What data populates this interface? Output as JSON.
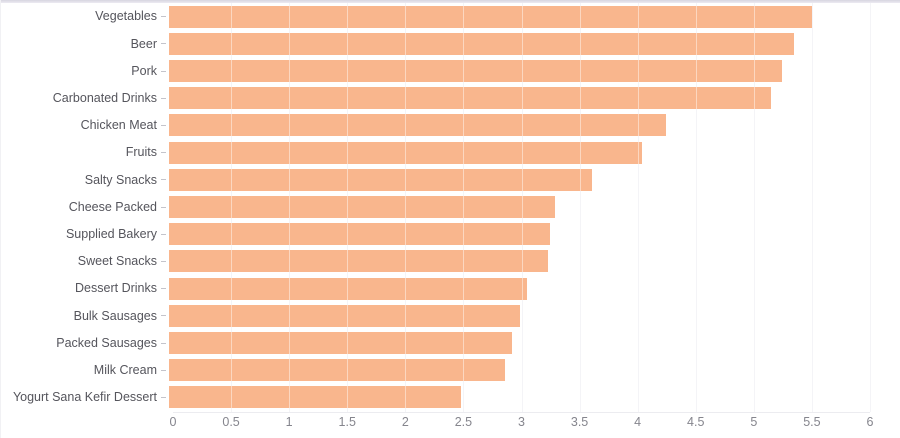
{
  "chart_data": {
    "type": "bar",
    "orientation": "horizontal",
    "title": "",
    "xlabel": "",
    "ylabel": "",
    "categories": [
      "Vegetables",
      "Beer",
      "Pork",
      "Carbonated Drinks",
      "Chicken Meat",
      "Fruits",
      "Salty Snacks",
      "Cheese Packed",
      "Supplied Bakery",
      "Sweet Snacks",
      "Dessert Drinks",
      "Bulk Sausages",
      "Packed Sausages",
      "Milk Cream",
      "Yogurt Sana Kefir Dessert"
    ],
    "values": [
      5.5,
      5.35,
      5.25,
      5.15,
      4.25,
      4.05,
      3.62,
      3.3,
      3.26,
      3.24,
      3.06,
      3.0,
      2.94,
      2.88,
      2.5
    ],
    "xlim": [
      0,
      6
    ],
    "x_ticks": [
      "0",
      "0.5",
      "1",
      "1.5",
      "2",
      "2.5",
      "3",
      "3.5",
      "4",
      "4.5",
      "5",
      "5.5",
      "6"
    ],
    "grid": "vertical-on",
    "legend": "none"
  },
  "colors": {
    "bar": "#f9b68d",
    "gridline": "#ebecf1",
    "axis_label": "#85858d",
    "category_label": "#55555c",
    "tick_mark": "#c4c4cb",
    "top_strip": "#dcdbe4",
    "background": "#ffffff"
  }
}
